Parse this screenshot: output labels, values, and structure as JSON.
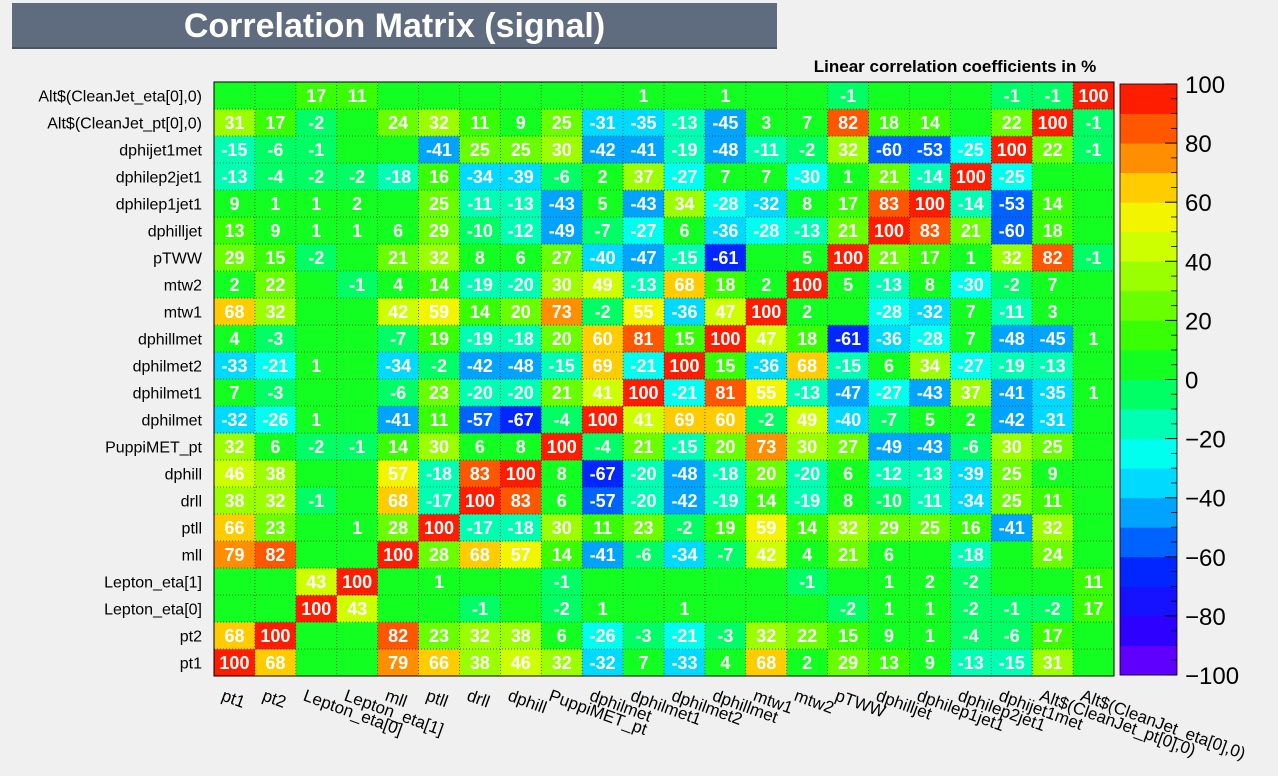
{
  "title": "Correlation Matrix (signal)",
  "chart_data": {
    "type": "heatmap",
    "title": "Linear correlation coefficients in %",
    "variables": [
      "pt1",
      "pt2",
      "Lepton_eta[0]",
      "Lepton_eta[1]",
      "mll",
      "ptll",
      "drll",
      "dphill",
      "PuppiMET_pt",
      "dphilmet",
      "dphilmet1",
      "dphilmet2",
      "dphillmet",
      "mtw1",
      "mtw2",
      "pTWW",
      "dphilljet",
      "dphilep1jet1",
      "dphilep2jet1",
      "dphijet1met",
      "Alt$(CleanJet_pt[0],0)",
      "Alt$(CleanJet_eta[0],0)"
    ],
    "matrix": [
      [
        100,
        68,
        null,
        null,
        79,
        66,
        38,
        46,
        32,
        -32,
        7,
        -33,
        4,
        68,
        2,
        29,
        13,
        9,
        -13,
        -15,
        31,
        null
      ],
      [
        68,
        100,
        null,
        null,
        82,
        23,
        32,
        38,
        6,
        -26,
        -3,
        -21,
        -3,
        32,
        22,
        15,
        9,
        1,
        -4,
        -6,
        17,
        null
      ],
      [
        null,
        null,
        100,
        43,
        null,
        null,
        -1,
        null,
        -2,
        1,
        null,
        1,
        null,
        null,
        null,
        -2,
        1,
        1,
        -2,
        -1,
        -2,
        17
      ],
      [
        null,
        null,
        43,
        100,
        null,
        1,
        null,
        null,
        -1,
        null,
        null,
        null,
        null,
        null,
        -1,
        null,
        1,
        2,
        -2,
        null,
        null,
        11
      ],
      [
        79,
        82,
        null,
        null,
        100,
        28,
        68,
        57,
        14,
        -41,
        -6,
        -34,
        -7,
        42,
        4,
        21,
        6,
        null,
        -18,
        null,
        24,
        null
      ],
      [
        66,
        23,
        null,
        1,
        28,
        100,
        -17,
        -18,
        30,
        11,
        23,
        -2,
        19,
        59,
        14,
        32,
        29,
        25,
        16,
        -41,
        32,
        null
      ],
      [
        38,
        32,
        -1,
        null,
        68,
        -17,
        100,
        83,
        6,
        -57,
        -20,
        -42,
        -19,
        14,
        -19,
        8,
        -10,
        -11,
        -34,
        25,
        11,
        null
      ],
      [
        46,
        38,
        null,
        null,
        57,
        -18,
        83,
        100,
        8,
        -67,
        -20,
        -48,
        -18,
        20,
        -20,
        6,
        -12,
        -13,
        -39,
        25,
        9,
        null
      ],
      [
        32,
        6,
        -2,
        -1,
        14,
        30,
        6,
        8,
        100,
        -4,
        21,
        -15,
        20,
        73,
        30,
        27,
        -49,
        -43,
        -6,
        30,
        25,
        null
      ],
      [
        -32,
        -26,
        1,
        null,
        -41,
        11,
        -57,
        -67,
        -4,
        100,
        41,
        69,
        60,
        -2,
        49,
        -40,
        -7,
        5,
        2,
        -42,
        -31,
        null
      ],
      [
        7,
        -3,
        null,
        null,
        -6,
        23,
        -20,
        -20,
        21,
        41,
        100,
        -21,
        81,
        55,
        -13,
        -47,
        -27,
        -43,
        37,
        -41,
        -35,
        1
      ],
      [
        -33,
        -21,
        1,
        null,
        -34,
        -2,
        -42,
        -48,
        -15,
        69,
        -21,
        100,
        15,
        -36,
        68,
        -15,
        6,
        34,
        -27,
        -19,
        -13,
        null
      ],
      [
        4,
        -3,
        null,
        null,
        -7,
        19,
        -19,
        -18,
        20,
        60,
        81,
        15,
        100,
        47,
        18,
        -61,
        -36,
        -28,
        7,
        -48,
        -45,
        1
      ],
      [
        68,
        32,
        null,
        null,
        42,
        59,
        14,
        20,
        73,
        -2,
        55,
        -36,
        47,
        100,
        2,
        null,
        -28,
        -32,
        7,
        -11,
        3,
        null
      ],
      [
        2,
        22,
        null,
        -1,
        4,
        14,
        -19,
        -20,
        30,
        49,
        -13,
        68,
        18,
        2,
        100,
        5,
        -13,
        8,
        -30,
        -2,
        7,
        null
      ],
      [
        29,
        15,
        -2,
        null,
        21,
        32,
        8,
        6,
        27,
        -40,
        -47,
        -15,
        -61,
        null,
        5,
        100,
        21,
        17,
        1,
        32,
        82,
        -1
      ],
      [
        13,
        9,
        1,
        1,
        6,
        29,
        -10,
        -12,
        -49,
        -7,
        -27,
        6,
        -36,
        -28,
        -13,
        21,
        100,
        83,
        21,
        -60,
        18,
        null
      ],
      [
        9,
        1,
        1,
        2,
        null,
        25,
        -11,
        -13,
        -43,
        5,
        -43,
        34,
        -28,
        -32,
        8,
        17,
        83,
        100,
        -14,
        -53,
        14,
        null
      ],
      [
        -13,
        -4,
        -2,
        -2,
        -18,
        16,
        -34,
        -39,
        -6,
        2,
        37,
        -27,
        7,
        7,
        -30,
        1,
        21,
        -14,
        100,
        -25,
        null,
        null
      ],
      [
        -15,
        -6,
        -1,
        null,
        null,
        -41,
        25,
        25,
        30,
        -42,
        -41,
        -19,
        -48,
        -11,
        -2,
        32,
        -60,
        -53,
        -25,
        100,
        22,
        -1
      ],
      [
        31,
        17,
        -2,
        null,
        24,
        32,
        11,
        9,
        25,
        -31,
        -35,
        -13,
        -45,
        3,
        7,
        82,
        18,
        14,
        null,
        22,
        100,
        -1
      ],
      [
        null,
        null,
        17,
        11,
        null,
        null,
        null,
        null,
        null,
        null,
        1,
        null,
        1,
        null,
        null,
        -1,
        null,
        null,
        null,
        -1,
        -1,
        100
      ]
    ],
    "zlim": [
      -100,
      100
    ],
    "palette_ticks": [
      -100,
      -80,
      -60,
      -40,
      -20,
      0,
      20,
      40,
      60,
      80,
      100
    ]
  }
}
